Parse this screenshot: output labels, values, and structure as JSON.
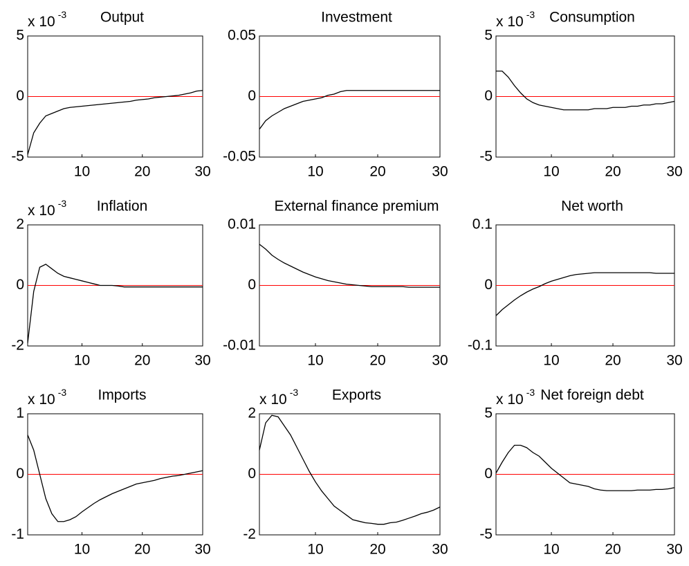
{
  "chart_data": [
    {
      "type": "line",
      "title": "Output",
      "scale_label": {
        "base": "x 10",
        "exponent": "-3"
      },
      "x": [
        1,
        2,
        3,
        4,
        5,
        6,
        7,
        8,
        9,
        10,
        11,
        12,
        13,
        14,
        15,
        16,
        17,
        18,
        19,
        20,
        21,
        22,
        23,
        24,
        25,
        26,
        27,
        28,
        29,
        30
      ],
      "values": [
        -4.8,
        -3,
        -2.2,
        -1.6,
        -1.4,
        -1.2,
        -1.0,
        -0.9,
        -0.85,
        -0.8,
        -0.75,
        -0.7,
        -0.65,
        -0.6,
        -0.55,
        -0.5,
        -0.45,
        -0.4,
        -0.3,
        -0.25,
        -0.2,
        -0.1,
        -0.05,
        0,
        0.05,
        0.1,
        0.2,
        0.3,
        0.45,
        0.5
      ],
      "color": "#000000",
      "hline": 0,
      "hline_color": "#ff0000",
      "xlim": [
        1,
        30
      ],
      "xticks": [
        10,
        20,
        30
      ],
      "ylim": [
        -5,
        5
      ],
      "yticks": [
        -5,
        0,
        5
      ]
    },
    {
      "type": "line",
      "title": "Investment",
      "x": [
        1,
        2,
        3,
        4,
        5,
        6,
        7,
        8,
        9,
        10,
        11,
        12,
        13,
        14,
        15,
        16,
        17,
        18,
        19,
        20,
        21,
        22,
        23,
        24,
        25,
        26,
        27,
        28,
        29,
        30
      ],
      "values": [
        -0.027,
        -0.02,
        -0.016,
        -0.013,
        -0.01,
        -0.008,
        -0.006,
        -0.004,
        -0.003,
        -0.002,
        -0.001,
        0.001,
        0.002,
        0.004,
        0.005,
        0.005,
        0.005,
        0.005,
        0.005,
        0.005,
        0.005,
        0.005,
        0.005,
        0.005,
        0.005,
        0.005,
        0.005,
        0.005,
        0.005,
        0.005
      ],
      "color": "#000000",
      "hline": 0,
      "hline_color": "#ff0000",
      "xlim": [
        1,
        30
      ],
      "xticks": [
        10,
        20,
        30
      ],
      "ylim": [
        -0.05,
        0.05
      ],
      "yticks": [
        -0.05,
        0,
        0.05
      ]
    },
    {
      "type": "line",
      "title": "Consumption",
      "scale_label": {
        "base": "x 10",
        "exponent": "-3"
      },
      "x": [
        1,
        2,
        3,
        4,
        5,
        6,
        7,
        8,
        9,
        10,
        11,
        12,
        13,
        14,
        15,
        16,
        17,
        18,
        19,
        20,
        21,
        22,
        23,
        24,
        25,
        26,
        27,
        28,
        29,
        30
      ],
      "values": [
        2.1,
        2.1,
        1.6,
        0.9,
        0.3,
        -0.2,
        -0.5,
        -0.7,
        -0.8,
        -0.9,
        -1.0,
        -1.1,
        -1.1,
        -1.1,
        -1.1,
        -1.1,
        -1.0,
        -1.0,
        -1.0,
        -0.9,
        -0.9,
        -0.9,
        -0.8,
        -0.8,
        -0.7,
        -0.7,
        -0.6,
        -0.6,
        -0.5,
        -0.4
      ],
      "color": "#000000",
      "hline": 0,
      "hline_color": "#ff0000",
      "xlim": [
        1,
        30
      ],
      "xticks": [
        10,
        20,
        30
      ],
      "ylim": [
        -5,
        5
      ],
      "yticks": [
        -5,
        0,
        5
      ]
    },
    {
      "type": "line",
      "title": "Inflation",
      "scale_label": {
        "base": "x 10",
        "exponent": "-3"
      },
      "x": [
        1,
        2,
        3,
        4,
        5,
        6,
        7,
        8,
        9,
        10,
        11,
        12,
        13,
        14,
        15,
        16,
        17,
        18,
        19,
        20,
        21,
        22,
        23,
        24,
        25,
        26,
        27,
        28,
        29,
        30
      ],
      "values": [
        -1.9,
        -0.2,
        0.6,
        0.7,
        0.55,
        0.4,
        0.3,
        0.25,
        0.2,
        0.15,
        0.1,
        0.05,
        0,
        0,
        0,
        -0.02,
        -0.05,
        -0.05,
        -0.05,
        -0.05,
        -0.05,
        -0.05,
        -0.05,
        -0.05,
        -0.05,
        -0.05,
        -0.05,
        -0.05,
        -0.05,
        -0.05
      ],
      "color": "#000000",
      "hline": 0,
      "hline_color": "#ff0000",
      "xlim": [
        1,
        30
      ],
      "xticks": [
        10,
        20,
        30
      ],
      "ylim": [
        -2,
        2
      ],
      "yticks": [
        -2,
        0,
        2
      ]
    },
    {
      "type": "line",
      "title": "External finance premium",
      "x": [
        1,
        2,
        3,
        4,
        5,
        6,
        7,
        8,
        9,
        10,
        11,
        12,
        13,
        14,
        15,
        16,
        17,
        18,
        19,
        20,
        21,
        22,
        23,
        24,
        25,
        26,
        27,
        28,
        29,
        30
      ],
      "values": [
        0.0068,
        0.006,
        0.005,
        0.0043,
        0.0037,
        0.0032,
        0.0027,
        0.0022,
        0.0018,
        0.0014,
        0.0011,
        0.0008,
        0.0006,
        0.0004,
        0.0002,
        0.0001,
        0,
        -0.0001,
        -0.0002,
        -0.0002,
        -0.0002,
        -0.0002,
        -0.0002,
        -0.0002,
        -0.0003,
        -0.0003,
        -0.0003,
        -0.0003,
        -0.0003,
        -0.0003
      ],
      "color": "#000000",
      "hline": 0,
      "hline_color": "#ff0000",
      "xlim": [
        1,
        30
      ],
      "xticks": [
        10,
        20,
        30
      ],
      "ylim": [
        -0.01,
        0.01
      ],
      "yticks": [
        -0.01,
        0,
        0.01
      ]
    },
    {
      "type": "line",
      "title": "Net worth",
      "x": [
        1,
        2,
        3,
        4,
        5,
        6,
        7,
        8,
        9,
        10,
        11,
        12,
        13,
        14,
        15,
        16,
        17,
        18,
        19,
        20,
        21,
        22,
        23,
        24,
        25,
        26,
        27,
        28,
        29,
        30
      ],
      "values": [
        -0.05,
        -0.04,
        -0.032,
        -0.024,
        -0.017,
        -0.011,
        -0.006,
        -0.002,
        0.003,
        0.007,
        0.01,
        0.013,
        0.016,
        0.018,
        0.019,
        0.02,
        0.021,
        0.021,
        0.021,
        0.021,
        0.021,
        0.021,
        0.021,
        0.021,
        0.021,
        0.021,
        0.02,
        0.02,
        0.02,
        0.02
      ],
      "color": "#000000",
      "hline": 0,
      "hline_color": "#ff0000",
      "xlim": [
        1,
        30
      ],
      "xticks": [
        10,
        20,
        30
      ],
      "ylim": [
        -0.1,
        0.1
      ],
      "yticks": [
        -0.1,
        0,
        0.1
      ]
    },
    {
      "type": "line",
      "title": "Imports",
      "scale_label": {
        "base": "x 10",
        "exponent": "-3"
      },
      "x": [
        1,
        2,
        3,
        4,
        5,
        6,
        7,
        8,
        9,
        10,
        11,
        12,
        13,
        14,
        15,
        16,
        17,
        18,
        19,
        20,
        21,
        22,
        23,
        24,
        25,
        26,
        27,
        28,
        29,
        30
      ],
      "values": [
        0.65,
        0.4,
        0,
        -0.4,
        -0.65,
        -0.78,
        -0.78,
        -0.75,
        -0.7,
        -0.62,
        -0.55,
        -0.48,
        -0.42,
        -0.37,
        -0.32,
        -0.28,
        -0.24,
        -0.2,
        -0.16,
        -0.14,
        -0.12,
        -0.1,
        -0.07,
        -0.05,
        -0.03,
        -0.02,
        0,
        0.02,
        0.04,
        0.06
      ],
      "color": "#000000",
      "hline": 0,
      "hline_color": "#ff0000",
      "xlim": [
        1,
        30
      ],
      "xticks": [
        10,
        20,
        30
      ],
      "ylim": [
        -1,
        1
      ],
      "yticks": [
        -1,
        0,
        1
      ]
    },
    {
      "type": "line",
      "title": "Exports",
      "scale_label": {
        "base": "x 10",
        "exponent": "-3"
      },
      "x": [
        1,
        2,
        3,
        4,
        5,
        6,
        7,
        8,
        9,
        10,
        11,
        12,
        13,
        14,
        15,
        16,
        17,
        18,
        19,
        20,
        21,
        22,
        23,
        24,
        25,
        26,
        27,
        28,
        29,
        30
      ],
      "values": [
        0.8,
        1.7,
        1.95,
        1.9,
        1.6,
        1.3,
        0.9,
        0.5,
        0.1,
        -0.25,
        -0.55,
        -0.8,
        -1.05,
        -1.2,
        -1.35,
        -1.5,
        -1.55,
        -1.6,
        -1.62,
        -1.65,
        -1.65,
        -1.6,
        -1.58,
        -1.52,
        -1.45,
        -1.38,
        -1.3,
        -1.25,
        -1.18,
        -1.08
      ],
      "color": "#000000",
      "hline": 0,
      "hline_color": "#ff0000",
      "xlim": [
        1,
        30
      ],
      "xticks": [
        10,
        20,
        30
      ],
      "ylim": [
        -2,
        2
      ],
      "yticks": [
        -2,
        0,
        2
      ]
    },
    {
      "type": "line",
      "title": "Net foreign debt",
      "scale_label": {
        "base": "x 10",
        "exponent": "-3"
      },
      "x": [
        1,
        2,
        3,
        4,
        5,
        6,
        7,
        8,
        9,
        10,
        11,
        12,
        13,
        14,
        15,
        16,
        17,
        18,
        19,
        20,
        21,
        22,
        23,
        24,
        25,
        26,
        27,
        28,
        29,
        30
      ],
      "values": [
        0.1,
        1.0,
        1.8,
        2.4,
        2.4,
        2.2,
        1.8,
        1.5,
        1.0,
        0.5,
        0.1,
        -0.3,
        -0.7,
        -0.8,
        -0.9,
        -1.0,
        -1.2,
        -1.3,
        -1.35,
        -1.35,
        -1.35,
        -1.35,
        -1.35,
        -1.3,
        -1.3,
        -1.3,
        -1.25,
        -1.25,
        -1.2,
        -1.1
      ],
      "color": "#000000",
      "hline": 0,
      "hline_color": "#ff0000",
      "xlim": [
        1,
        30
      ],
      "xticks": [
        10,
        20,
        30
      ],
      "ylim": [
        -5,
        5
      ],
      "yticks": [
        -5,
        0,
        5
      ]
    }
  ]
}
